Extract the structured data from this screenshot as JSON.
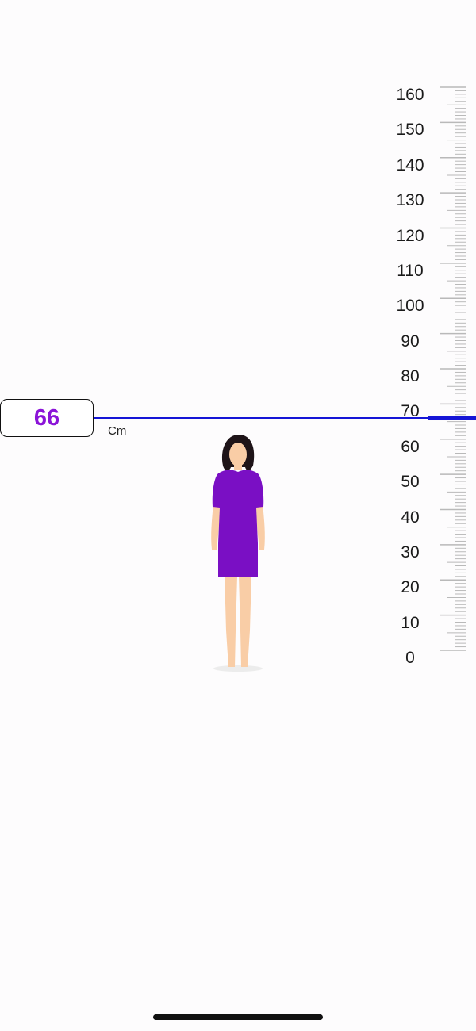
{
  "measurement": {
    "value": "66",
    "unit": "Cm"
  },
  "scale": {
    "min": 0,
    "max": 160,
    "labels": [
      "160",
      "150",
      "140",
      "130",
      "120",
      "110",
      "100",
      "90",
      "80",
      "70",
      "60",
      "50",
      "40",
      "30",
      "20",
      "10",
      "0"
    ],
    "major_step": 10,
    "minor_step": 1
  },
  "colors": {
    "accent": "#8b14d8",
    "marker": "#1515d6",
    "dress": "#7a0fc4",
    "skin": "#f9cda6",
    "hair": "#1e1418",
    "tick": "#b9b9b9",
    "home_indicator": "#111111"
  },
  "icons": {
    "figure": "person-figure-icon"
  }
}
